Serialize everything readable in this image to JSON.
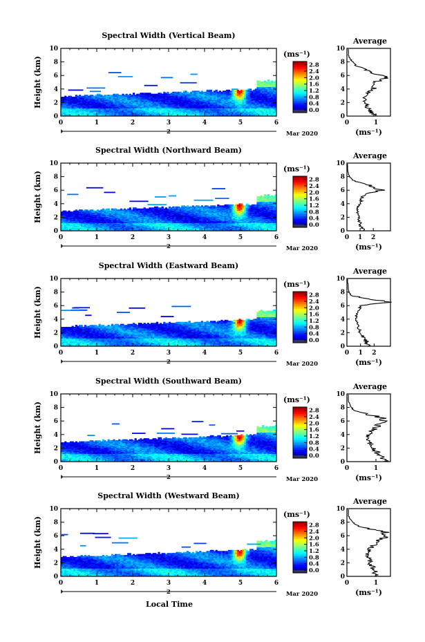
{
  "figure": {
    "x_axis_label": "Local Time",
    "date_label": "Mar 2020",
    "day_marker": "2"
  },
  "chart_data": [
    {
      "type": "heatmap",
      "title": "Spectral Width (Vertical Beam)",
      "ylabel": "Height (km)",
      "xlim": [
        0,
        6
      ],
      "ylim": [
        0,
        10
      ],
      "x_ticks": [
        "0",
        "1",
        "2",
        "3",
        "4",
        "5",
        "6"
      ],
      "y_ticks": [
        "0",
        "2",
        "4",
        "6",
        "8",
        "10"
      ],
      "colorbar": {
        "unit": "(ms⁻¹)",
        "ticks": [
          "0.0",
          "0.4",
          "0.8",
          "1.2",
          "1.6",
          "2.0",
          "2.4",
          "2.8"
        ],
        "range": [
          0,
          3.0
        ]
      },
      "profile": {
        "title": "Average",
        "xlabel": "(ms⁻¹)",
        "xlim": [
          0,
          1.5
        ],
        "x_ticks": [
          "0",
          "1"
        ],
        "heights": [
          0,
          0.5,
          1,
          1.5,
          2,
          2.5,
          3,
          3.5,
          4,
          4.5,
          5,
          5.5,
          6,
          6.5,
          7,
          7.5,
          8,
          8.5,
          9,
          9.5,
          10
        ],
        "values": [
          0.95,
          0.85,
          0.75,
          0.7,
          0.65,
          0.6,
          0.65,
          0.75,
          0.9,
          1.0,
          0.95,
          1.3,
          1.25,
          0.8,
          0.55,
          0.3,
          0.2,
          0.1,
          0.05,
          0.05,
          0.05
        ]
      }
    },
    {
      "type": "heatmap",
      "title": "Spectral Width (Northward Beam)",
      "ylabel": "Height (km)",
      "xlim": [
        0,
        6
      ],
      "ylim": [
        0,
        10
      ],
      "x_ticks": [
        "0",
        "1",
        "2",
        "3",
        "4",
        "5",
        "6"
      ],
      "y_ticks": [
        "0",
        "2",
        "4",
        "6",
        "8",
        "10"
      ],
      "colorbar": {
        "unit": "(ms⁻¹)",
        "ticks": [
          "0.0",
          "0.4",
          "0.8",
          "1.2",
          "1.6",
          "2.0",
          "2.4",
          "2.8"
        ],
        "range": [
          0,
          3.0
        ]
      },
      "profile": {
        "title": "Average",
        "xlabel": "(ms⁻¹)",
        "xlim": [
          0,
          3.3
        ],
        "x_ticks": [
          "0",
          "1",
          "2"
        ],
        "heights": [
          0,
          0.5,
          1,
          1.5,
          2,
          2.5,
          3,
          3.5,
          4,
          4.5,
          5,
          5.5,
          6,
          6.5,
          7,
          7.5,
          8,
          8.5,
          9,
          9.5,
          10
        ],
        "values": [
          1.3,
          1.1,
          1.0,
          0.95,
          0.9,
          0.85,
          0.8,
          0.8,
          1.0,
          1.1,
          1.2,
          1.5,
          2.6,
          2.0,
          1.2,
          0.4,
          0.2,
          0.1,
          0.05,
          0.05,
          0.05
        ]
      }
    },
    {
      "type": "heatmap",
      "title": "Spectral Width (Eastward Beam)",
      "ylabel": "Height (km)",
      "xlim": [
        0,
        6
      ],
      "ylim": [
        0,
        10
      ],
      "x_ticks": [
        "0",
        "1",
        "2",
        "3",
        "4",
        "5",
        "6"
      ],
      "y_ticks": [
        "0",
        "2",
        "4",
        "6",
        "8",
        "10"
      ],
      "colorbar": {
        "unit": "(ms⁻¹)",
        "ticks": [
          "0.0",
          "0.4",
          "0.8",
          "1.2",
          "1.6",
          "2.0",
          "2.4",
          "2.8"
        ],
        "range": [
          0,
          3.0
        ]
      },
      "profile": {
        "title": "Average",
        "xlabel": "(ms⁻¹)",
        "xlim": [
          0,
          3.2
        ],
        "x_ticks": [
          "0",
          "1",
          "2"
        ],
        "heights": [
          0,
          0.5,
          1,
          1.5,
          2,
          2.5,
          3,
          3.5,
          4,
          4.5,
          5,
          5.5,
          6,
          6.5,
          7,
          7.5,
          8,
          8.5,
          9,
          9.5,
          10
        ],
        "values": [
          1.6,
          1.5,
          1.3,
          1.2,
          1.0,
          0.9,
          0.8,
          0.75,
          0.7,
          0.7,
          0.8,
          0.9,
          1.0,
          3.0,
          1.6,
          0.3,
          0.15,
          0.1,
          0.1,
          0.05,
          0.05
        ]
      }
    },
    {
      "type": "heatmap",
      "title": "Spectral Width (Southward Beam)",
      "ylabel": "Height (km)",
      "xlim": [
        0,
        6
      ],
      "ylim": [
        0,
        10
      ],
      "x_ticks": [
        "0",
        "1",
        "2",
        "3",
        "4",
        "5",
        "6"
      ],
      "y_ticks": [
        "0",
        "2",
        "4",
        "6",
        "8",
        "10"
      ],
      "colorbar": {
        "unit": "(ms⁻¹)",
        "ticks": [
          "0.0",
          "0.4",
          "0.8",
          "1.2",
          "1.6",
          "2.0",
          "2.4",
          "2.8"
        ],
        "range": [
          0,
          3.0
        ]
      },
      "profile": {
        "title": "Average",
        "xlabel": "(ms⁻¹)",
        "xlim": [
          0,
          1.5
        ],
        "x_ticks": [
          "0",
          "1"
        ],
        "heights": [
          0,
          0.5,
          1,
          1.5,
          2,
          2.5,
          3,
          3.5,
          4,
          4.5,
          5,
          5.5,
          6,
          6.5,
          7,
          7.5,
          8,
          8.5,
          9,
          9.5,
          10
        ],
        "values": [
          1.3,
          1.2,
          1.1,
          1.0,
          0.9,
          0.85,
          0.75,
          0.7,
          0.75,
          0.85,
          1.0,
          1.1,
          1.3,
          1.2,
          0.7,
          0.3,
          0.15,
          0.1,
          0.05,
          0.05,
          0.05
        ]
      }
    },
    {
      "type": "heatmap",
      "title": "Spectral Width (Westward Beam)",
      "ylabel": "Height (km)",
      "xlim": [
        0,
        6
      ],
      "ylim": [
        0,
        10
      ],
      "x_ticks": [
        "0",
        "1",
        "2",
        "3",
        "4",
        "5",
        "6"
      ],
      "y_ticks": [
        "0",
        "2",
        "4",
        "6",
        "8",
        "10"
      ],
      "colorbar": {
        "unit": "(ms⁻¹)",
        "ticks": [
          "0.0",
          "0.4",
          "0.8",
          "1.2",
          "1.6",
          "2.0",
          "2.4",
          "2.8"
        ],
        "range": [
          0,
          3.0
        ]
      },
      "profile": {
        "title": "Average",
        "xlabel": "(ms⁻¹)",
        "xlim": [
          0,
          1.5
        ],
        "x_ticks": [
          "0",
          "1"
        ],
        "heights": [
          0,
          0.5,
          1,
          1.5,
          2,
          2.5,
          3,
          3.5,
          4,
          4.5,
          5,
          5.5,
          6,
          6.5,
          7,
          7.5,
          8,
          8.5,
          9,
          9.5,
          10
        ],
        "values": [
          1.1,
          1.0,
          0.95,
          0.85,
          0.8,
          0.75,
          0.7,
          0.7,
          0.75,
          0.9,
          1.0,
          1.2,
          1.4,
          1.3,
          0.8,
          0.4,
          0.2,
          0.1,
          0.05,
          0.05,
          0.05
        ]
      }
    }
  ]
}
